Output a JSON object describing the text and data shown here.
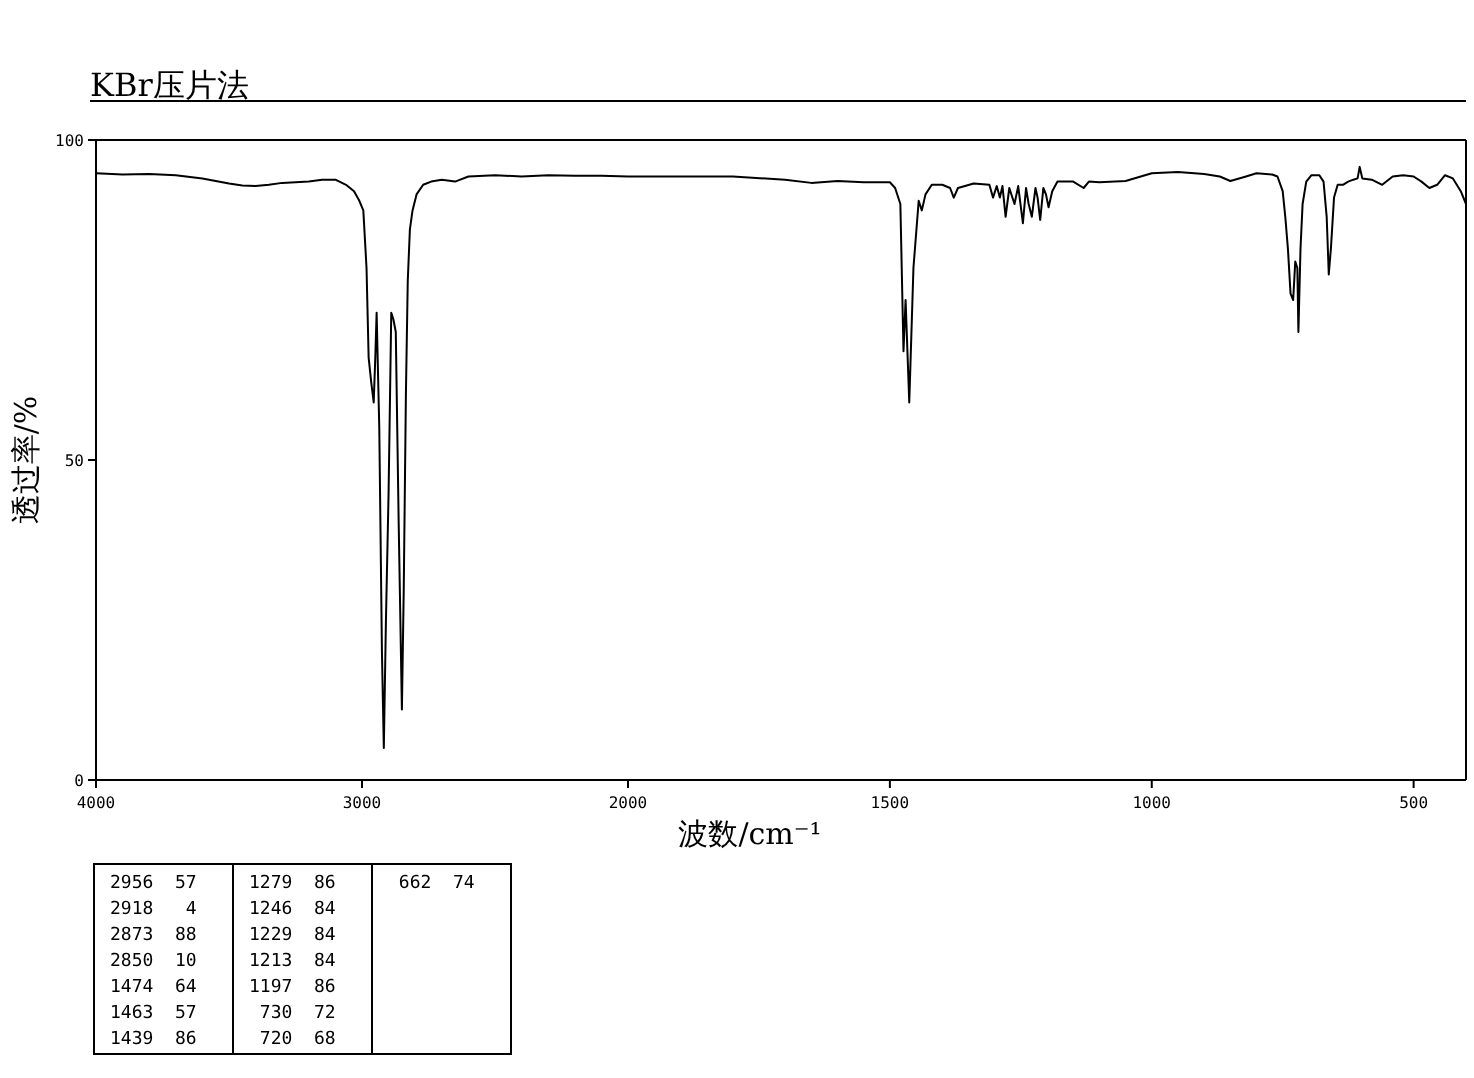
{
  "chart_data": [
    {
      "type": "line",
      "title": "KBr压片法",
      "ylabel": "透过率/%",
      "xlim": [
        4000,
        2000
      ],
      "xticks": [
        4000,
        3000,
        2000
      ],
      "ylim": [
        0,
        100
      ],
      "yticks": [
        0,
        50,
        100
      ],
      "x": [
        4000,
        3900,
        3800,
        3700,
        3600,
        3500,
        3450,
        3400,
        3350,
        3300,
        3200,
        3150,
        3100,
        3060,
        3030,
        3010,
        2995,
        2983,
        2975,
        2965,
        2956,
        2950,
        2945,
        2935,
        2925,
        2918,
        2910,
        2900,
        2890,
        2882,
        2873,
        2862,
        2850,
        2843,
        2835,
        2828,
        2820,
        2810,
        2795,
        2770,
        2740,
        2700,
        2650,
        2600,
        2500,
        2400,
        2300,
        2200,
        2100,
        2000
      ],
      "series": [
        {
          "color": "#000000",
          "values": [
            94.8,
            94.6,
            94.7,
            94.5,
            94.0,
            93.2,
            92.9,
            92.8,
            93.0,
            93.3,
            93.5,
            93.8,
            93.8,
            93.0,
            92.0,
            90.5,
            89,
            80,
            66,
            62,
            59,
            66,
            73,
            55,
            20,
            5,
            25,
            45,
            73,
            72,
            70,
            40,
            11,
            30,
            60,
            78,
            86,
            89,
            91.5,
            93,
            93.5,
            93.8,
            93.5,
            94.3,
            94.5,
            94.3,
            94.5,
            94.4,
            94.4,
            94.3
          ]
        }
      ],
      "annotations": [
        "2956  57",
        "2918   4",
        "2873  88",
        "2850  10",
        "1474  64",
        "1463  57",
        "1439  86",
        "1279  86",
        "1246  84",
        "1229  84",
        "1213  84",
        "1197  86",
        " 730  72",
        " 720  68",
        " 662  74"
      ]
    },
    {
      "type": "line",
      "xlabel": "波数/cm⁻¹",
      "tick_labels": "x",
      "xlim": [
        2000,
        400
      ],
      "xticks": [
        1500,
        1000,
        500
      ],
      "ylim": [
        0,
        100
      ],
      "x": [
        2000,
        1900,
        1800,
        1700,
        1650,
        1600,
        1550,
        1500,
        1490,
        1480,
        1474,
        1470,
        1463,
        1455,
        1445,
        1439,
        1432,
        1420,
        1400,
        1385,
        1378,
        1370,
        1340,
        1310,
        1303,
        1296,
        1290,
        1285,
        1279,
        1272,
        1262,
        1255,
        1246,
        1240,
        1235,
        1229,
        1222,
        1218,
        1213,
        1207,
        1202,
        1197,
        1190,
        1180,
        1150,
        1130,
        1120,
        1100,
        1050,
        1000,
        950,
        900,
        870,
        850,
        820,
        800,
        770,
        760,
        750,
        745,
        740,
        735,
        730,
        726,
        722,
        720,
        716,
        712,
        705,
        695,
        680,
        672,
        666,
        662,
        658,
        652,
        645,
        635,
        625,
        615,
        607,
        603,
        598,
        580,
        560,
        540,
        520,
        500,
        485,
        470,
        455,
        440,
        425,
        410,
        400
      ],
      "series": [
        {
          "color": "#000000",
          "values": [
            94.3,
            94.3,
            94.3,
            93.8,
            93.3,
            93.6,
            93.4,
            93.4,
            92.5,
            90,
            67,
            75,
            59,
            80,
            90.5,
            89,
            91.5,
            93,
            93,
            92.5,
            91,
            92.5,
            93.2,
            93,
            91,
            92.8,
            91,
            92.8,
            88,
            92.5,
            90,
            92.8,
            87,
            92.5,
            90,
            88,
            92.5,
            91,
            87.5,
            92.5,
            91.5,
            89.5,
            92,
            93.5,
            93.5,
            92.5,
            93.5,
            93.4,
            93.6,
            94.8,
            95,
            94.7,
            94.3,
            93.6,
            94.3,
            94.8,
            94.6,
            94.3,
            92,
            88,
            83,
            76,
            75,
            81,
            80,
            70,
            83,
            90,
            93.5,
            94.5,
            94.5,
            93.5,
            88,
            79,
            83,
            91,
            93,
            93,
            93.5,
            93.8,
            94,
            95.8,
            94,
            93.8,
            93,
            94.3,
            94.5,
            94.3,
            93.5,
            92.5,
            93,
            94.5,
            94,
            92,
            90
          ]
        }
      ]
    }
  ]
}
